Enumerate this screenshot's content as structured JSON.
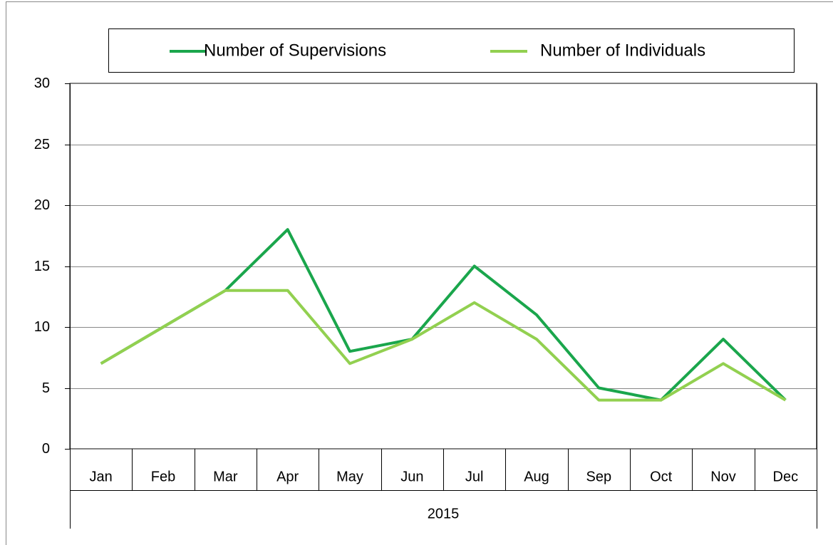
{
  "chart_data": {
    "type": "line",
    "categories": [
      "Jan",
      "Feb",
      "Mar",
      "Apr",
      "May",
      "Jun",
      "Jul",
      "Aug",
      "Sep",
      "Oct",
      "Nov",
      "Dec"
    ],
    "category_group": "2015",
    "series": [
      {
        "name": "Number of Supervisions",
        "color": "#1aa64c",
        "values": [
          7,
          10,
          13,
          18,
          8,
          9,
          15,
          11,
          5,
          4,
          9,
          4
        ]
      },
      {
        "name": "Number of Individuals",
        "color": "#92d050",
        "values": [
          7,
          10,
          13,
          13,
          7,
          9,
          12,
          9,
          4,
          4,
          7,
          4
        ]
      }
    ],
    "ylim": [
      0,
      30
    ],
    "yticks": [
      0,
      5,
      10,
      15,
      20,
      25,
      30
    ],
    "grid": true,
    "legend": "top"
  }
}
